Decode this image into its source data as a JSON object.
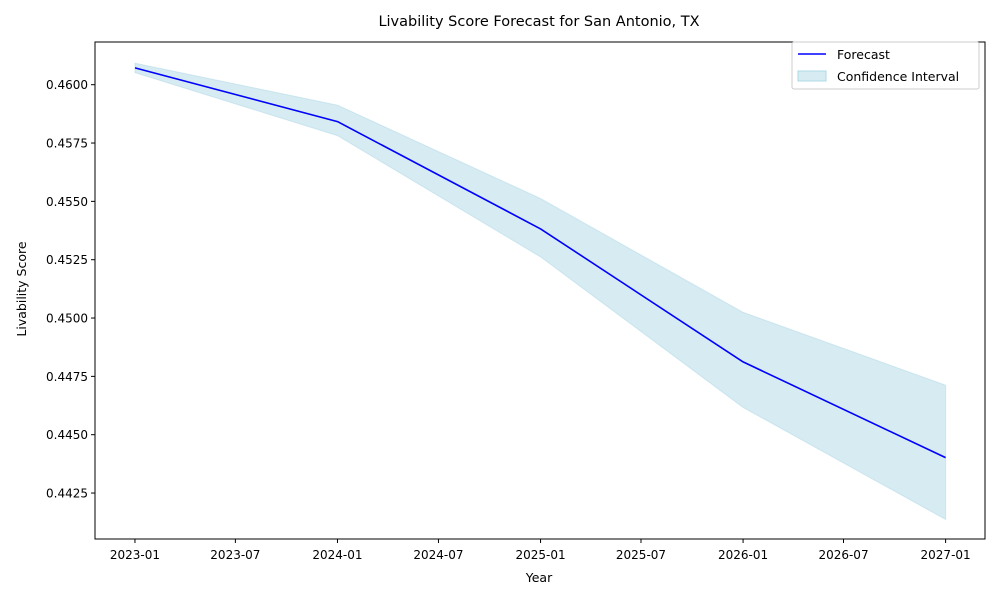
{
  "chart_data": {
    "type": "line",
    "title": "Livability Score Forecast for San Antonio, TX",
    "xlabel": "Year",
    "ylabel": "Livability Score",
    "x": [
      "2023-01-01",
      "2024-01-01",
      "2025-01-01",
      "2026-01-01",
      "2027-01-01"
    ],
    "series": [
      {
        "name": "Forecast",
        "values": [
          0.46072,
          0.45842,
          0.45382,
          0.44812,
          0.44402
        ],
        "color": "#0000ff"
      }
    ],
    "confidence_interval": {
      "name": "Confidence Interval",
      "lower": [
        0.46052,
        0.45782,
        0.45262,
        0.44617,
        0.44137
      ],
      "upper": [
        0.46092,
        0.45912,
        0.45512,
        0.45024,
        0.44712
      ],
      "color": "#add8e6",
      "opacity": 0.5
    },
    "xlim": [
      "2022-10-21",
      "2027-03-13"
    ],
    "ylim": [
      0.44053,
      0.46183
    ],
    "x_ticks": [
      {
        "date": "2023-01-01",
        "label": "2023-01"
      },
      {
        "date": "2023-07-01",
        "label": "2023-07"
      },
      {
        "date": "2024-01-01",
        "label": "2024-01"
      },
      {
        "date": "2024-07-01",
        "label": "2024-07"
      },
      {
        "date": "2025-01-01",
        "label": "2025-01"
      },
      {
        "date": "2025-07-01",
        "label": "2025-07"
      },
      {
        "date": "2026-01-01",
        "label": "2026-01"
      },
      {
        "date": "2026-07-01",
        "label": "2026-07"
      },
      {
        "date": "2027-01-01",
        "label": "2027-01"
      }
    ],
    "y_ticks": [
      {
        "value": 0.4425,
        "label": "0.4425"
      },
      {
        "value": 0.445,
        "label": "0.4450"
      },
      {
        "value": 0.4475,
        "label": "0.4475"
      },
      {
        "value": 0.45,
        "label": "0.4500"
      },
      {
        "value": 0.4525,
        "label": "0.4525"
      },
      {
        "value": 0.455,
        "label": "0.4550"
      },
      {
        "value": 0.4575,
        "label": "0.4575"
      },
      {
        "value": 0.46,
        "label": "0.4600"
      }
    ],
    "grid": false,
    "legend_position": "top-right"
  }
}
